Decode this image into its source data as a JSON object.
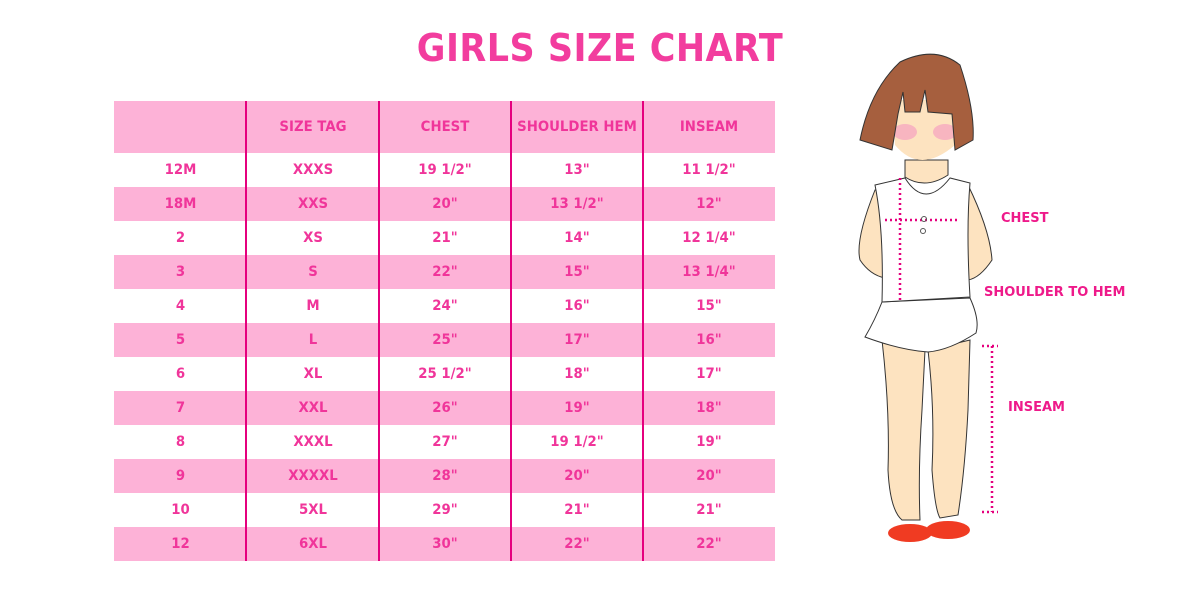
{
  "title": "GIRLS SIZE CHART",
  "table": {
    "headers": [
      "",
      "SIZE TAG",
      "CHEST",
      "SHOULDER HEM",
      "INSEAM"
    ],
    "rows": [
      [
        "12M",
        "XXXS",
        "19 1/2\"",
        "13\"",
        "11 1/2\""
      ],
      [
        "18M",
        "XXS",
        "20\"",
        "13 1/2\"",
        "12\""
      ],
      [
        "2",
        "XS",
        "21\"",
        "14\"",
        "12 1/4\""
      ],
      [
        "3",
        "S",
        "22\"",
        "15\"",
        "13 1/4\""
      ],
      [
        "4",
        "M",
        "24\"",
        "16\"",
        "15\""
      ],
      [
        "5",
        "L",
        "25\"",
        "17\"",
        "16\""
      ],
      [
        "6",
        "XL",
        "25 1/2\"",
        "18\"",
        "17\""
      ],
      [
        "7",
        "XXL",
        "26\"",
        "19\"",
        "18\""
      ],
      [
        "8",
        "XXXL",
        "27\"",
        "19 1/2\"",
        "19\""
      ],
      [
        "9",
        "XXXXL",
        "28\"",
        "20\"",
        "20\""
      ],
      [
        "10",
        "5XL",
        "29\"",
        "21\"",
        "21\""
      ],
      [
        "12",
        "6XL",
        "30\"",
        "22\"",
        "22\""
      ]
    ]
  },
  "figure": {
    "labels": {
      "chest": "CHEST",
      "shoulder": "SHOULDER TO HEM",
      "inseam": "INSEAM"
    }
  },
  "colors": {
    "accent": "#f0359a",
    "row_fill": "#fdb2d7",
    "divider": "#e5007e"
  }
}
